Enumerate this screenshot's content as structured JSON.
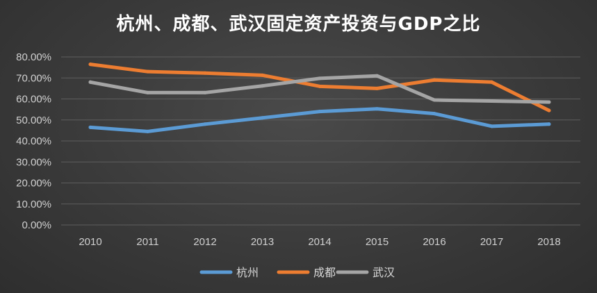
{
  "chart_data": {
    "type": "line",
    "title": "杭州、成都、武汉固定资产投资与GDP之比",
    "xlabel": "",
    "ylabel": "",
    "categories": [
      "2010",
      "2011",
      "2012",
      "2013",
      "2014",
      "2015",
      "2016",
      "2017",
      "2018"
    ],
    "ylim": [
      0,
      80
    ],
    "y_ticks": [
      "0.00%",
      "10.00%",
      "20.00%",
      "30.00%",
      "40.00%",
      "50.00%",
      "60.00%",
      "70.00%",
      "80.00%"
    ],
    "grid": true,
    "legend_position": "bottom",
    "series": [
      {
        "name": "杭州",
        "color": "#5b9bd5",
        "values": [
          46.5,
          44.5,
          48.0,
          51.0,
          54.0,
          55.3,
          53.0,
          47.0,
          48.0
        ]
      },
      {
        "name": "成都",
        "color": "#ed7d31",
        "values": [
          76.5,
          73.0,
          72.3,
          71.3,
          66.0,
          65.0,
          69.0,
          68.0,
          54.5
        ]
      },
      {
        "name": "武汉",
        "color": "#a5a5a5",
        "values": [
          68.0,
          63.0,
          63.0,
          66.2,
          69.8,
          71.0,
          59.5,
          59.0,
          58.5
        ]
      }
    ]
  }
}
